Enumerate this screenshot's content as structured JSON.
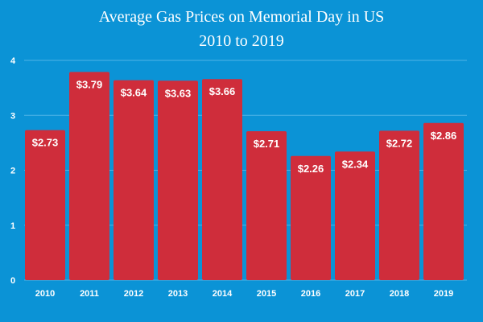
{
  "chart_data": {
    "type": "bar",
    "title": "Average Gas Prices on Memorial Day in US",
    "subtitle": "2010 to 2019",
    "categories": [
      "2010",
      "2011",
      "2012",
      "2013",
      "2014",
      "2015",
      "2016",
      "2017",
      "2018",
      "2019"
    ],
    "values": [
      2.73,
      3.79,
      3.64,
      3.63,
      3.66,
      2.71,
      2.26,
      2.34,
      2.72,
      2.86
    ],
    "data_labels": [
      "$2.73",
      "$3.79",
      "$3.64",
      "$3.63",
      "$3.66",
      "$2.71",
      "$2.26",
      "$2.34",
      "$2.72",
      "$2.86"
    ],
    "yticks": [
      "0",
      "1",
      "2",
      "3",
      "4"
    ],
    "ylim": [
      0,
      4
    ],
    "grid": true,
    "legend": "none",
    "colors": {
      "background": "#0b93d6",
      "bar": "#cf2d3b",
      "text": "#ffffff",
      "grid": "#4fb3e6"
    }
  }
}
